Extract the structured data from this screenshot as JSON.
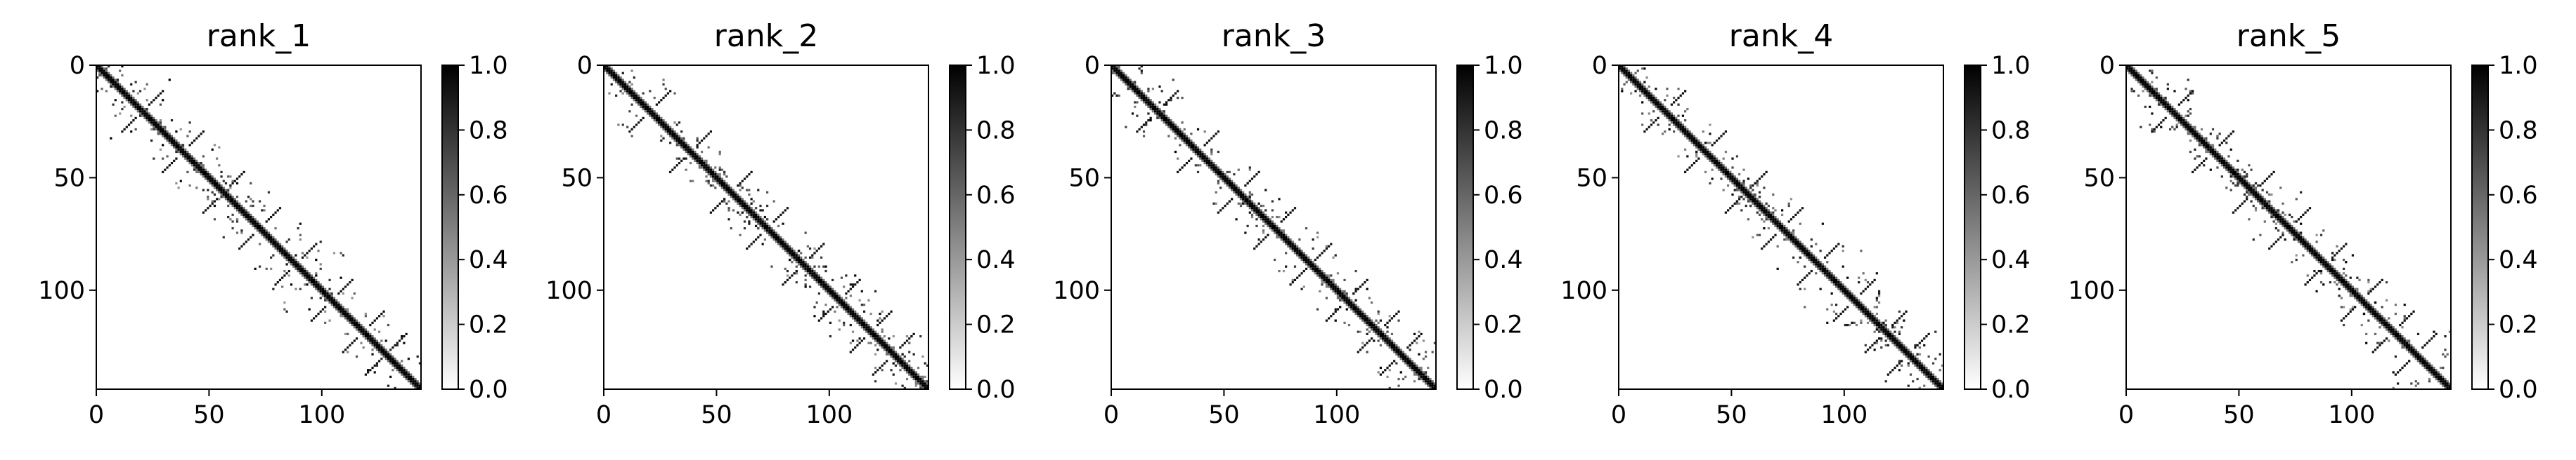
{
  "figure": {
    "description": "Five heatmap panels with shared 0–1 grayscale colorbars"
  },
  "chart_data": [
    {
      "type": "heatmap",
      "title": "rank_1",
      "matrix_size": 144,
      "xlim": [
        0,
        144
      ],
      "ylim": [
        144,
        0
      ],
      "x_ticks": [
        0,
        50,
        100
      ],
      "y_ticks": [
        0,
        50,
        100
      ],
      "colorbar": {
        "min": 0.0,
        "max": 1.0,
        "ticks": [
          "0.0",
          "0.2",
          "0.4",
          "0.6",
          "0.8",
          "1.0"
        ],
        "colormap": "Greys"
      },
      "grid": false,
      "contact_blocks_approx": [
        [
          0,
          14
        ],
        [
          5,
          33
        ],
        [
          10,
          30
        ],
        [
          24,
          42
        ],
        [
          33,
          56
        ],
        [
          45,
          62
        ],
        [
          52,
          70
        ],
        [
          55,
          78
        ],
        [
          62,
          76
        ],
        [
          70,
          92
        ],
        [
          78,
          100
        ],
        [
          82,
          110
        ],
        [
          92,
          116
        ],
        [
          100,
          125
        ],
        [
          110,
          130
        ],
        [
          118,
          144
        ],
        [
          128,
          144
        ]
      ]
    },
    {
      "type": "heatmap",
      "title": "rank_2",
      "matrix_size": 144,
      "xlim": [
        0,
        144
      ],
      "ylim": [
        144,
        0
      ],
      "x_ticks": [
        0,
        50,
        100
      ],
      "y_ticks": [
        0,
        50,
        100
      ],
      "colorbar": {
        "min": 0.0,
        "max": 1.0,
        "ticks": [
          "0.0",
          "0.2",
          "0.4",
          "0.6",
          "0.8",
          "1.0"
        ],
        "colormap": "Greys"
      },
      "grid": false,
      "contact_blocks_approx": [
        [
          0,
          14
        ],
        [
          5,
          33
        ],
        [
          10,
          30
        ],
        [
          24,
          42
        ],
        [
          33,
          56
        ],
        [
          45,
          62
        ],
        [
          52,
          70
        ],
        [
          55,
          78
        ],
        [
          62,
          76
        ],
        [
          70,
          92
        ],
        [
          78,
          100
        ],
        [
          82,
          110
        ],
        [
          92,
          116
        ],
        [
          100,
          125
        ],
        [
          110,
          130
        ],
        [
          118,
          144
        ],
        [
          128,
          144
        ]
      ]
    },
    {
      "type": "heatmap",
      "title": "rank_3",
      "matrix_size": 144,
      "xlim": [
        0,
        144
      ],
      "ylim": [
        144,
        0
      ],
      "x_ticks": [
        0,
        50,
        100
      ],
      "y_ticks": [
        0,
        50,
        100
      ],
      "colorbar": {
        "min": 0.0,
        "max": 1.0,
        "ticks": [
          "0.0",
          "0.2",
          "0.4",
          "0.6",
          "0.8",
          "1.0"
        ],
        "colormap": "Greys"
      },
      "grid": false,
      "contact_blocks_approx": [
        [
          0,
          14
        ],
        [
          5,
          33
        ],
        [
          10,
          30
        ],
        [
          24,
          42
        ],
        [
          33,
          56
        ],
        [
          45,
          62
        ],
        [
          52,
          70
        ],
        [
          55,
          78
        ],
        [
          62,
          76
        ],
        [
          70,
          92
        ],
        [
          78,
          100
        ],
        [
          82,
          110
        ],
        [
          92,
          116
        ],
        [
          100,
          125
        ],
        [
          110,
          130
        ],
        [
          118,
          144
        ],
        [
          128,
          144
        ]
      ]
    },
    {
      "type": "heatmap",
      "title": "rank_4",
      "matrix_size": 144,
      "xlim": [
        0,
        144
      ],
      "ylim": [
        144,
        0
      ],
      "x_ticks": [
        0,
        50,
        100
      ],
      "y_ticks": [
        0,
        50,
        100
      ],
      "colorbar": {
        "min": 0.0,
        "max": 1.0,
        "ticks": [
          "0.0",
          "0.2",
          "0.4",
          "0.6",
          "0.8",
          "1.0"
        ],
        "colormap": "Greys"
      },
      "grid": false,
      "contact_blocks_approx": [
        [
          0,
          14
        ],
        [
          5,
          33
        ],
        [
          10,
          30
        ],
        [
          24,
          42
        ],
        [
          33,
          56
        ],
        [
          45,
          62
        ],
        [
          52,
          70
        ],
        [
          55,
          78
        ],
        [
          62,
          76
        ],
        [
          70,
          92
        ],
        [
          78,
          100
        ],
        [
          82,
          110
        ],
        [
          92,
          116
        ],
        [
          100,
          125
        ],
        [
          110,
          130
        ],
        [
          118,
          144
        ],
        [
          128,
          144
        ]
      ]
    },
    {
      "type": "heatmap",
      "title": "rank_5",
      "matrix_size": 144,
      "xlim": [
        0,
        144
      ],
      "ylim": [
        144,
        0
      ],
      "x_ticks": [
        0,
        50,
        100
      ],
      "y_ticks": [
        0,
        50,
        100
      ],
      "colorbar": {
        "min": 0.0,
        "max": 1.0,
        "ticks": [
          "0.0",
          "0.2",
          "0.4",
          "0.6",
          "0.8",
          "1.0"
        ],
        "colormap": "Greys"
      },
      "grid": false,
      "contact_blocks_approx": [
        [
          0,
          14
        ],
        [
          5,
          33
        ],
        [
          10,
          30
        ],
        [
          24,
          42
        ],
        [
          33,
          56
        ],
        [
          45,
          62
        ],
        [
          52,
          70
        ],
        [
          55,
          78
        ],
        [
          62,
          76
        ],
        [
          70,
          92
        ],
        [
          78,
          100
        ],
        [
          82,
          110
        ],
        [
          92,
          116
        ],
        [
          100,
          125
        ],
        [
          110,
          130
        ],
        [
          118,
          144
        ],
        [
          128,
          144
        ]
      ]
    }
  ]
}
